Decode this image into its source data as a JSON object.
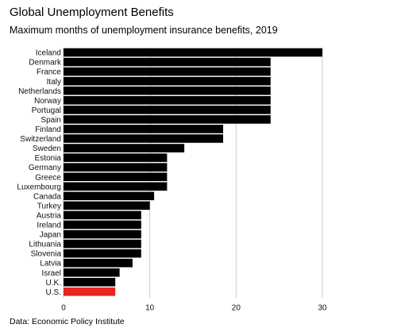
{
  "title": "Global Unemployment Benefits",
  "subtitle": "Maximum months of unemployment insurance benefits, 2019",
  "source": "Data: Economic Policy Institute",
  "colors": {
    "bar": "#000000",
    "highlight": "#e8251f",
    "gridline": "#c9c9c9",
    "background": "#ffffff"
  },
  "chart_data": {
    "type": "bar",
    "orientation": "horizontal",
    "title": "Global Unemployment Benefits",
    "subtitle": "Maximum months of unemployment insurance benefits, 2019",
    "xlabel": "",
    "ylabel": "",
    "xlim": [
      0,
      30
    ],
    "x_ticks": [
      "0",
      "10",
      "20",
      "30"
    ],
    "grid": "vertical",
    "legend": "none",
    "highlighted_category": "U.S.",
    "categories": [
      "Iceland",
      "Denmark",
      "France",
      "Italy",
      "Netherlands",
      "Norway",
      "Portugal",
      "Spain",
      "Finland",
      "Switzerland",
      "Sweden",
      "Estonia",
      "Germany",
      "Greece",
      "Luxembourg",
      "Canada",
      "Turkey",
      "Austria",
      "Ireland",
      "Japan",
      "Lithuania",
      "Slovenia",
      "Latvia",
      "Israel",
      "U.K.",
      "U.S."
    ],
    "values": [
      30,
      24,
      24,
      24,
      24,
      24,
      24,
      24,
      18.5,
      18.5,
      14,
      12,
      12,
      12,
      12,
      10.5,
      10,
      9,
      9,
      9,
      9,
      9,
      8,
      6.5,
      6,
      6
    ]
  }
}
